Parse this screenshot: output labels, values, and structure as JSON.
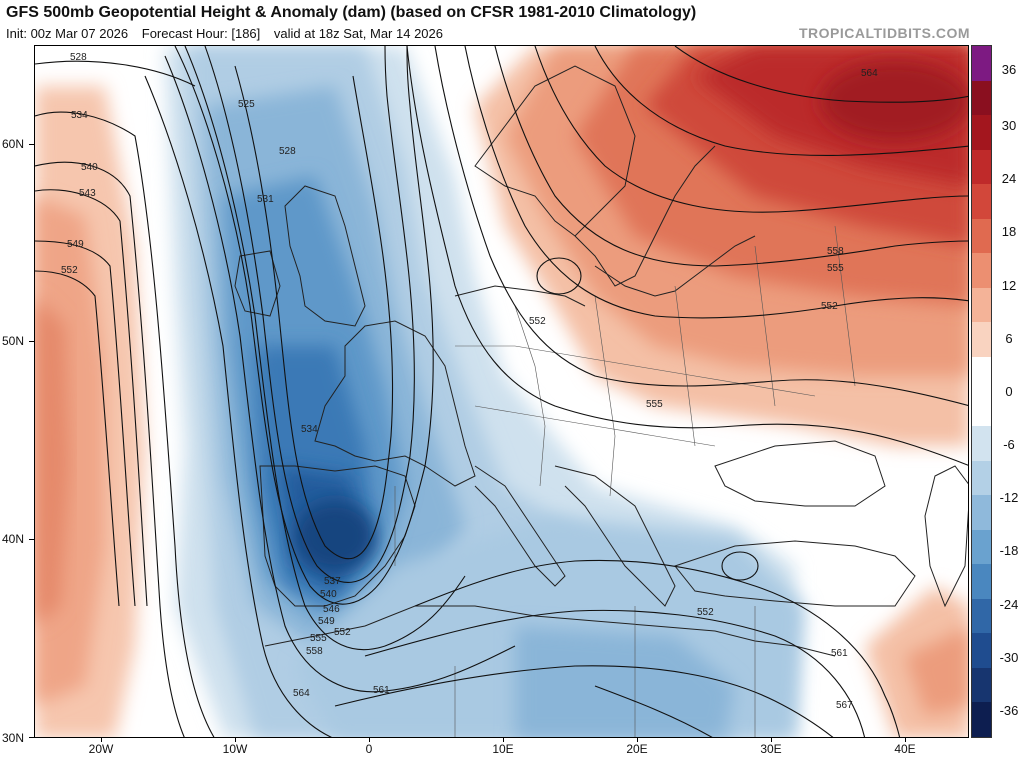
{
  "header": {
    "title": "GFS 500mb Geopotential Height & Anomaly (dam) (based on CFSR 1981-2010 Climatology)",
    "init": "Init: 00z Mar 07 2026",
    "forecast_hour": "Forecast Hour: [186]",
    "valid": "valid at 18z Sat, Mar 14 2026",
    "credit": "TROPICALTIDBITS.COM"
  },
  "axes": {
    "lat_labels": [
      "60N",
      "50N",
      "40N",
      "30N"
    ],
    "lon_labels": [
      "20W",
      "10W",
      "0",
      "10E",
      "20E",
      "30E",
      "40E"
    ]
  },
  "colorbar": {
    "labels": [
      "36",
      "30",
      "24",
      "18",
      "12",
      "6",
      "0",
      "-6",
      "-12",
      "-18",
      "-24",
      "-30",
      "-36"
    ],
    "colors": [
      "#7d1a82",
      "#8a0f1f",
      "#a3161e",
      "#bf2a2a",
      "#d2473a",
      "#e06a50",
      "#ec8f71",
      "#f4b398",
      "#f9d3c0",
      "#ffffff",
      "#ffffff",
      "#d2e3ef",
      "#b3d0e6",
      "#8fb9db",
      "#6aa2cf",
      "#4a87bf",
      "#3067a7",
      "#1f4c8f",
      "#17356f",
      "#0d1e50"
    ]
  },
  "contour_labels": [
    "528",
    "534",
    "540",
    "543",
    "549",
    "552",
    "525",
    "528",
    "531",
    "534",
    "537",
    "540",
    "546",
    "549",
    "552",
    "555",
    "558",
    "564",
    "561",
    "552",
    "555",
    "552",
    "558",
    "555",
    "552",
    "561",
    "567",
    "564"
  ]
}
